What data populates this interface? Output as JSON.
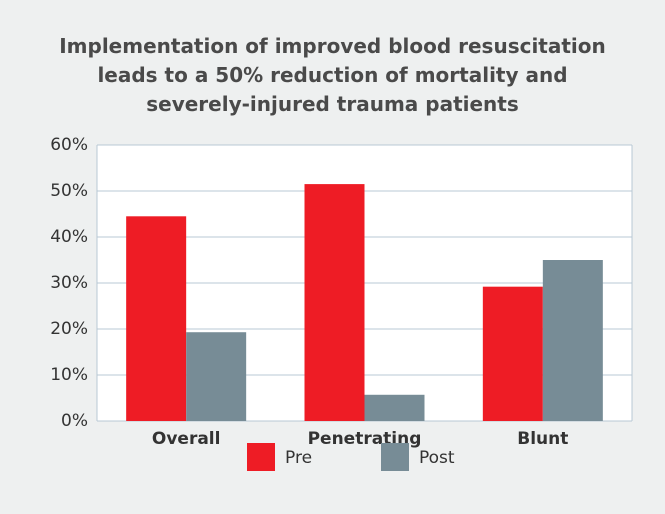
{
  "chart_data": {
    "type": "bar",
    "title": "Implementation of improved blood resuscitation leads to a 50% reduction of mortality and severely-injured trauma patients",
    "categories": [
      "Overall",
      "Penetrating",
      "Blunt"
    ],
    "series": [
      {
        "name": "Pre",
        "color": "#ee1c25",
        "values": [
          44.5,
          51.5,
          29.2
        ]
      },
      {
        "name": "Post",
        "color": "#778c96",
        "values": [
          19.3,
          5.7,
          35
        ]
      }
    ],
    "ylim": [
      0,
      60
    ],
    "yticks": [
      {
        "value": 0,
        "label": "0%"
      },
      {
        "value": 10,
        "label": "10%"
      },
      {
        "value": 20,
        "label": "20%"
      },
      {
        "value": 30,
        "label": "30%"
      },
      {
        "value": 40,
        "label": "40%"
      },
      {
        "value": 50,
        "label": "50%"
      },
      {
        "value": 60,
        "label": "60%"
      }
    ],
    "grid": true
  }
}
